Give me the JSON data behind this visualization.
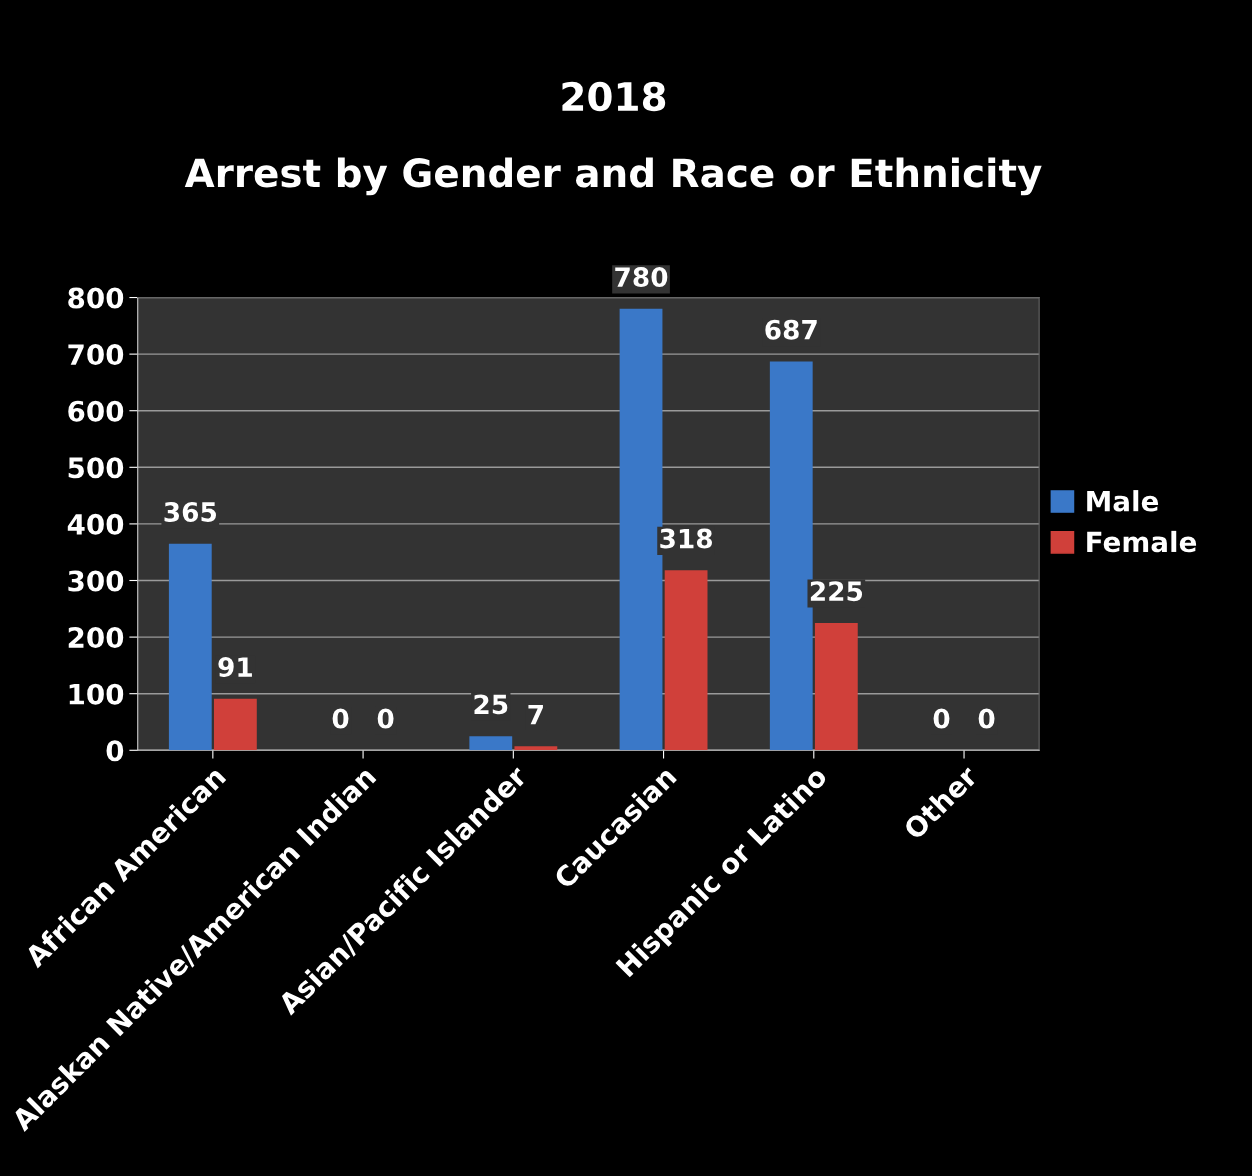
{
  "chart_data": {
    "type": "bar",
    "title": "2018",
    "subtitle": "Arrest by Gender and Race or Ethnicity",
    "categories": [
      "African American",
      "Alaskan Native/American Indian",
      "Asian/Pacific Islander",
      "Caucasian",
      "Hispanic or Latino",
      "Other"
    ],
    "series": [
      {
        "name": "Male",
        "color": "#3a78c8",
        "values": [
          365,
          0,
          25,
          780,
          687,
          0
        ]
      },
      {
        "name": "Female",
        "color": "#d0403a",
        "values": [
          91,
          0,
          7,
          318,
          225,
          0
        ]
      }
    ],
    "ylim": [
      0,
      800
    ],
    "yticks": [
      0,
      100,
      200,
      300,
      400,
      500,
      600,
      700,
      800
    ],
    "grid": "y",
    "legend": "right",
    "data_labels": true
  }
}
